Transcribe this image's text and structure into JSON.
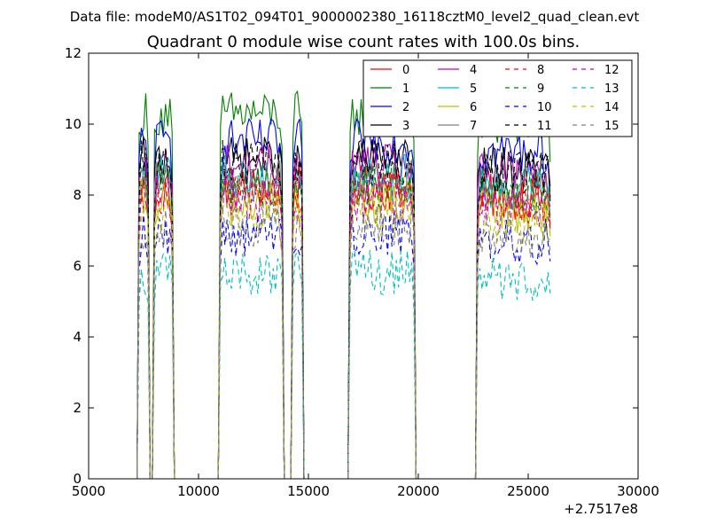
{
  "chart_data": {
    "type": "line",
    "suptitle": "Data file: modeM0/AS1T02_094T01_9000002380_16118cztM0_level2_quad_clean.evt",
    "title": "Quadrant 0 module wise count rates with 100.0s bins.",
    "xlabel": "",
    "ylabel": "",
    "x_offset_label": "+2.7517e8",
    "xlim": [
      5000,
      30000
    ],
    "ylim": [
      0,
      12
    ],
    "x_ticks": [
      5000,
      10000,
      15000,
      20000,
      25000,
      30000
    ],
    "y_ticks": [
      0,
      2,
      4,
      6,
      8,
      10,
      12
    ],
    "x_tick_labels": [
      "5000",
      "10000",
      "15000",
      "20000",
      "25000",
      "30000"
    ],
    "y_tick_labels": [
      "0",
      "2",
      "4",
      "6",
      "8",
      "10",
      "12"
    ],
    "bin_seconds": 100,
    "grid": false,
    "legend_position": "top-right",
    "active_intervals": [
      [
        7300,
        7700
      ],
      [
        8000,
        8800
      ],
      [
        11000,
        13800
      ],
      [
        14300,
        14700
      ],
      [
        16900,
        19800
      ],
      [
        22700,
        26000
      ]
    ],
    "series": [
      {
        "name": "0",
        "color": "#ff0000",
        "dash": "solid",
        "level": 8.2
      },
      {
        "name": "1",
        "color": "#008000",
        "dash": "solid",
        "level": 10.3
      },
      {
        "name": "2",
        "color": "#0000ff",
        "dash": "solid",
        "level": 9.5
      },
      {
        "name": "3",
        "color": "#000000",
        "dash": "solid",
        "level": 9.0
      },
      {
        "name": "4",
        "color": "#bf00bf",
        "dash": "solid",
        "level": 8.8
      },
      {
        "name": "5",
        "color": "#00bfbf",
        "dash": "solid",
        "level": 8.5
      },
      {
        "name": "6",
        "color": "#bfbf00",
        "dash": "solid",
        "level": 7.8
      },
      {
        "name": "7",
        "color": "#808080",
        "dash": "solid",
        "level": 8.4
      },
      {
        "name": "8",
        "color": "#ff0000",
        "dash": "dashed",
        "level": 8.1
      },
      {
        "name": "9",
        "color": "#008000",
        "dash": "dashed",
        "level": 8.3
      },
      {
        "name": "10",
        "color": "#0000ff",
        "dash": "dashed",
        "level": 6.9
      },
      {
        "name": "11",
        "color": "#000000",
        "dash": "dashed",
        "level": 8.9
      },
      {
        "name": "12",
        "color": "#bf00bf",
        "dash": "dashed",
        "level": 7.9
      },
      {
        "name": "13",
        "color": "#00bfbf",
        "dash": "dashed",
        "level": 5.8
      },
      {
        "name": "14",
        "color": "#bfbf00",
        "dash": "dashed",
        "level": 7.5
      },
      {
        "name": "15",
        "color": "#808080",
        "dash": "dashed",
        "level": 7.1
      }
    ]
  }
}
